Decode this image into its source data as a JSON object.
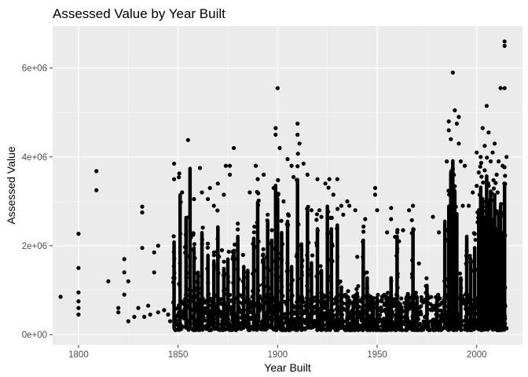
{
  "chart_data": {
    "type": "scatter",
    "title": "Assessed Value by Year Built",
    "xlabel": "Year Built",
    "ylabel": "Assessed Value",
    "xlim": [
      1787,
      2023
    ],
    "ylim": [
      -230000,
      6950000
    ],
    "x_ticks": [
      1800,
      1850,
      1900,
      1950,
      2000
    ],
    "x_tick_labels": [
      "1800",
      "1850",
      "1900",
      "1950",
      "2000"
    ],
    "y_ticks": [
      0,
      2000000,
      4000000,
      6000000
    ],
    "y_tick_labels": [
      "0e+00",
      "2e+06",
      "4e+06",
      "6e+06"
    ],
    "grid": true,
    "legend": "none",
    "colors": {
      "panel": "#ebebeb",
      "grid_major": "#ffffff",
      "points": "#000000"
    },
    "note_dense_columns": "dense vertical columns of points rendered as [year, max_value] stacks",
    "columns": [
      [
        1848,
        2450000
      ],
      [
        1851,
        3700000
      ],
      [
        1854,
        3100000
      ],
      [
        1856,
        4400000
      ],
      [
        1858,
        2300000
      ],
      [
        1860,
        1650000
      ],
      [
        1862,
        2700000
      ],
      [
        1865,
        2100000
      ],
      [
        1868,
        1950000
      ],
      [
        1870,
        2850000
      ],
      [
        1873,
        1750000
      ],
      [
        1875,
        2000000
      ],
      [
        1878,
        2200000
      ],
      [
        1880,
        2600000
      ],
      [
        1883,
        1800000
      ],
      [
        1885,
        1700000
      ],
      [
        1888,
        2550000
      ],
      [
        1890,
        3500000
      ],
      [
        1893,
        2000000
      ],
      [
        1895,
        3000000
      ],
      [
        1897,
        2500000
      ],
      [
        1899,
        3950000
      ],
      [
        1900,
        3600000
      ],
      [
        1902,
        2700000
      ],
      [
        1905,
        3000000
      ],
      [
        1907,
        1800000
      ],
      [
        1910,
        4100000
      ],
      [
        1912,
        2400000
      ],
      [
        1915,
        3300000
      ],
      [
        1917,
        1900000
      ],
      [
        1920,
        2800000
      ],
      [
        1922,
        1700000
      ],
      [
        1925,
        3400000
      ],
      [
        1927,
        2800000
      ],
      [
        1930,
        2900000
      ],
      [
        1932,
        1200000
      ],
      [
        1935,
        1000000
      ],
      [
        1938,
        800000
      ],
      [
        1940,
        1100000
      ],
      [
        1943,
        2500000
      ],
      [
        1945,
        1500000
      ],
      [
        1948,
        700000
      ],
      [
        1950,
        900000
      ],
      [
        1955,
        1000000
      ],
      [
        1957,
        1500000
      ],
      [
        1960,
        2600000
      ],
      [
        1962,
        700000
      ],
      [
        1965,
        1000000
      ],
      [
        1968,
        2800000
      ],
      [
        1970,
        1000000
      ],
      [
        1975,
        1300000
      ],
      [
        1980,
        900000
      ],
      [
        1984,
        3000000
      ],
      [
        1986,
        3400000
      ],
      [
        1987,
        4300000
      ],
      [
        1988,
        4600000
      ],
      [
        1989,
        3800000
      ],
      [
        1990,
        3200000
      ],
      [
        1992,
        1500000
      ],
      [
        1995,
        2600000
      ],
      [
        1997,
        2000000
      ],
      [
        1999,
        2300000
      ],
      [
        2001,
        3300000
      ],
      [
        2002,
        3900000
      ],
      [
        2003,
        3600000
      ],
      [
        2004,
        3100000
      ],
      [
        2005,
        4200000
      ],
      [
        2006,
        3500000
      ],
      [
        2007,
        3800000
      ],
      [
        2008,
        3000000
      ],
      [
        2009,
        3700000
      ],
      [
        2010,
        2800000
      ],
      [
        2011,
        3200000
      ],
      [
        2012,
        3400000
      ],
      [
        2013,
        2700000
      ],
      [
        2014,
        4000000
      ]
    ],
    "points": [
      [
        1791,
        850000
      ],
      [
        1800,
        2270000
      ],
      [
        1800,
        1500000
      ],
      [
        1800,
        950000
      ],
      [
        1800,
        750000
      ],
      [
        1800,
        600000
      ],
      [
        1800,
        450000
      ],
      [
        1809,
        3680000
      ],
      [
        1809,
        3250000
      ],
      [
        1815,
        1200000
      ],
      [
        1820,
        600000
      ],
      [
        1820,
        500000
      ],
      [
        1823,
        1700000
      ],
      [
        1823,
        1400000
      ],
      [
        1823,
        900000
      ],
      [
        1825,
        1200000
      ],
      [
        1825,
        300000
      ],
      [
        1828,
        400000
      ],
      [
        1830,
        600000
      ],
      [
        1832,
        2880000
      ],
      [
        1832,
        2750000
      ],
      [
        1832,
        1950000
      ],
      [
        1833,
        400000
      ],
      [
        1835,
        650000
      ],
      [
        1836,
        450000
      ],
      [
        1838,
        1850000
      ],
      [
        1838,
        1400000
      ],
      [
        1840,
        2000000
      ],
      [
        1840,
        500000
      ],
      [
        1843,
        550000
      ],
      [
        1845,
        450000
      ],
      [
        1846,
        300000
      ],
      [
        1848,
        3850000
      ],
      [
        1848,
        3500000
      ],
      [
        1852,
        3200000
      ],
      [
        1855,
        4380000
      ],
      [
        1858,
        3050000
      ],
      [
        1861,
        3750000
      ],
      [
        1862,
        3200000
      ],
      [
        1865,
        3050000
      ],
      [
        1866,
        3300000
      ],
      [
        1868,
        2900000
      ],
      [
        1870,
        3400000
      ],
      [
        1872,
        1900000
      ],
      [
        1873,
        3150000
      ],
      [
        1874,
        3800000
      ],
      [
        1876,
        3800000
      ],
      [
        1876,
        3600000
      ],
      [
        1878,
        4200000
      ],
      [
        1880,
        2500000
      ],
      [
        1885,
        1400000
      ],
      [
        1886,
        3200000
      ],
      [
        1889,
        3800000
      ],
      [
        1890,
        3500000
      ],
      [
        1893,
        3600000
      ],
      [
        1895,
        2700000
      ],
      [
        1898,
        3300000
      ],
      [
        1899,
        4650000
      ],
      [
        1899,
        4500000
      ],
      [
        1900,
        5550000
      ],
      [
        1901,
        4200000
      ],
      [
        1903,
        3000000
      ],
      [
        1905,
        3950000
      ],
      [
        1907,
        3800000
      ],
      [
        1908,
        3550000
      ],
      [
        1910,
        4750000
      ],
      [
        1910,
        4500000
      ],
      [
        1911,
        4300000
      ],
      [
        1913,
        3850000
      ],
      [
        1915,
        3600000
      ],
      [
        1917,
        2800000
      ],
      [
        1920,
        3500000
      ],
      [
        1921,
        2800000
      ],
      [
        1922,
        2650000
      ],
      [
        1924,
        3400000
      ],
      [
        1926,
        3500000
      ],
      [
        1928,
        3150000
      ],
      [
        1930,
        3500000
      ],
      [
        1932,
        2900000
      ],
      [
        1933,
        2700000
      ],
      [
        1935,
        3000000
      ],
      [
        1936,
        2900000
      ],
      [
        1939,
        2800000
      ],
      [
        1940,
        1750000
      ],
      [
        1944,
        2600000
      ],
      [
        1949,
        3300000
      ],
      [
        1949,
        3150000
      ],
      [
        1950,
        2800000
      ],
      [
        1955,
        2300000
      ],
      [
        1957,
        2850000
      ],
      [
        1957,
        2600000
      ],
      [
        1959,
        2200000
      ],
      [
        1961,
        2100000
      ],
      [
        1963,
        2350000
      ],
      [
        1966,
        2800000
      ],
      [
        1968,
        2900000
      ],
      [
        1971,
        1600000
      ],
      [
        1978,
        2650000
      ],
      [
        1981,
        2300000
      ],
      [
        1985,
        2350000
      ],
      [
        1985,
        3900000
      ],
      [
        1986,
        4600000
      ],
      [
        1986,
        4800000
      ],
      [
        1987,
        4400000
      ],
      [
        1988,
        5900000
      ],
      [
        1989,
        5050000
      ],
      [
        1990,
        4750000
      ],
      [
        1991,
        4300000
      ],
      [
        1991,
        4900000
      ],
      [
        1992,
        3900000
      ],
      [
        1993,
        2900000
      ],
      [
        1994,
        3800000
      ],
      [
        1996,
        2900000
      ],
      [
        1998,
        3200000
      ],
      [
        2000,
        3350000
      ],
      [
        2000,
        4100000
      ],
      [
        2001,
        3650000
      ],
      [
        2002,
        4000000
      ],
      [
        2003,
        4650000
      ],
      [
        2004,
        4250000
      ],
      [
        2004,
        3700000
      ],
      [
        2005,
        5150000
      ],
      [
        2006,
        4550000
      ],
      [
        2007,
        3900000
      ],
      [
        2008,
        4100000
      ],
      [
        2009,
        4300000
      ],
      [
        2010,
        3600000
      ],
      [
        2011,
        3900000
      ],
      [
        2012,
        5550000
      ],
      [
        2013,
        3800000
      ],
      [
        2014,
        6600000
      ],
      [
        2014,
        6500000
      ],
      [
        2014,
        5550000
      ],
      [
        2015,
        4000000
      ]
    ],
    "base_band": {
      "x": [
        1848,
        2015
      ],
      "y": [
        100000,
        900000
      ]
    }
  }
}
